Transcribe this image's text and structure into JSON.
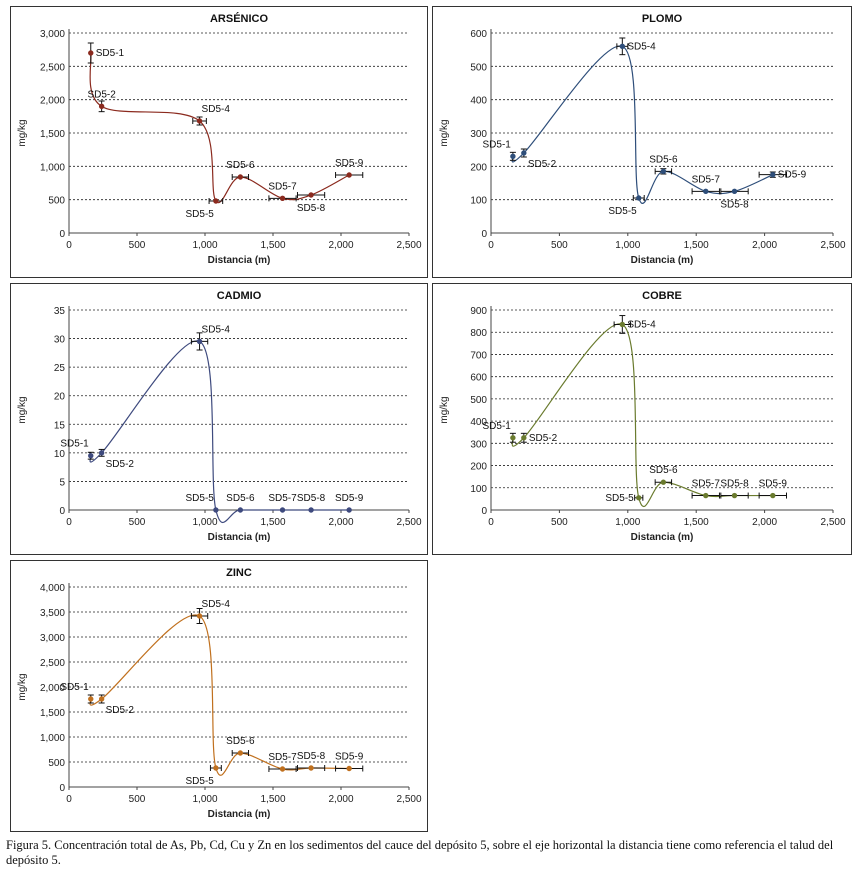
{
  "caption": "Figura 5. Concentración total de As, Pb, Cd, Cu y Zn en los sedimentos del cauce del depósito 5, sobre el eje horizontal la distancia tiene como referencia el talud del depósito 5.",
  "chart_data": [
    {
      "type": "line",
      "title": "ARSÉNICO",
      "xlabel": "Distancia (m)",
      "ylabel": "mg/kg",
      "xlim": [
        0,
        2500
      ],
      "ylim": [
        0,
        3000
      ],
      "xticks": [
        0,
        500,
        1000,
        1500,
        2000,
        2500
      ],
      "yticks": [
        0,
        500,
        1000,
        1500,
        2000,
        2500,
        3000
      ],
      "ytick_labels": [
        "0",
        "500",
        "1,000",
        "1,500",
        "2,000",
        "2,500",
        "3,000"
      ],
      "xtick_labels": [
        "0",
        "500",
        "1,000",
        "1,500",
        "2,000",
        "2,500"
      ],
      "grid": "horizontal dashed",
      "color": "#8B2A1E",
      "points": [
        {
          "label": "SD5-1",
          "x": 160,
          "y": 2700,
          "yerr": 150,
          "xerr": 0,
          "label_pos": "right"
        },
        {
          "label": "SD5-2",
          "x": 240,
          "y": 1900,
          "yerr": 80,
          "xerr": 0,
          "label_pos": "above"
        },
        {
          "label": "SD5-4",
          "x": 960,
          "y": 1680,
          "yerr": 60,
          "xerr": 50,
          "label_pos": "above-right"
        },
        {
          "label": "SD5-5",
          "x": 1080,
          "y": 480,
          "yerr": 0,
          "xerr": 50,
          "label_pos": "below-left"
        },
        {
          "label": "SD5-6",
          "x": 1260,
          "y": 840,
          "yerr": 0,
          "xerr": 60,
          "label_pos": "above"
        },
        {
          "label": "SD5-7",
          "x": 1570,
          "y": 520,
          "yerr": 0,
          "xerr": 100,
          "label_pos": "above"
        },
        {
          "label": "SD5-8",
          "x": 1780,
          "y": 570,
          "yerr": 0,
          "xerr": 100,
          "label_pos": "below"
        },
        {
          "label": "SD5-9",
          "x": 2060,
          "y": 870,
          "yerr": 0,
          "xerr": 100,
          "label_pos": "above"
        }
      ]
    },
    {
      "type": "line",
      "title": "PLOMO",
      "xlabel": "Distancia (m)",
      "ylabel": "mg/kg",
      "xlim": [
        0,
        2500
      ],
      "ylim": [
        0,
        600
      ],
      "xticks": [
        0,
        500,
        1000,
        1500,
        2000,
        2500
      ],
      "yticks": [
        0,
        100,
        200,
        300,
        400,
        500,
        600
      ],
      "ytick_labels": [
        "0",
        "100",
        "200",
        "300",
        "400",
        "500",
        "600"
      ],
      "xtick_labels": [
        "0",
        "500",
        "1,000",
        "1,500",
        "2,000",
        "2,500"
      ],
      "grid": "horizontal dashed",
      "color": "#2E4E7A",
      "points": [
        {
          "label": "SD5-1",
          "x": 160,
          "y": 230,
          "yerr": 12,
          "xerr": 0,
          "label_pos": "above-left"
        },
        {
          "label": "SD5-2",
          "x": 240,
          "y": 240,
          "yerr": 12,
          "xerr": 0,
          "label_pos": "below-right"
        },
        {
          "label": "SD5-4",
          "x": 960,
          "y": 560,
          "yerr": 25,
          "xerr": 40,
          "label_pos": "right"
        },
        {
          "label": "SD5-5",
          "x": 1080,
          "y": 105,
          "yerr": 0,
          "xerr": 40,
          "label_pos": "below-left"
        },
        {
          "label": "SD5-6",
          "x": 1260,
          "y": 185,
          "yerr": 8,
          "xerr": 60,
          "label_pos": "above"
        },
        {
          "label": "SD5-7",
          "x": 1570,
          "y": 125,
          "yerr": 0,
          "xerr": 100,
          "label_pos": "above"
        },
        {
          "label": "SD5-8",
          "x": 1780,
          "y": 125,
          "yerr": 0,
          "xerr": 100,
          "label_pos": "below"
        },
        {
          "label": "SD5-9",
          "x": 2060,
          "y": 175,
          "yerr": 8,
          "xerr": 100,
          "label_pos": "right"
        }
      ]
    },
    {
      "type": "line",
      "title": "CADMIO",
      "xlabel": "Distancia (m)",
      "ylabel": "mg/kg",
      "xlim": [
        0,
        2500
      ],
      "ylim": [
        0,
        35
      ],
      "xticks": [
        0,
        500,
        1000,
        1500,
        2000,
        2500
      ],
      "yticks": [
        0,
        5,
        10,
        15,
        20,
        25,
        30,
        35
      ],
      "ytick_labels": [
        "0",
        "5",
        "10",
        "15",
        "20",
        "25",
        "30",
        "35"
      ],
      "xtick_labels": [
        "0",
        "500",
        "1,000",
        "1,500",
        "2,000",
        "2,500"
      ],
      "grid": "horizontal dashed",
      "color": "#3E4A7E",
      "points": [
        {
          "label": "SD5-1",
          "x": 160,
          "y": 9.5,
          "yerr": 0.6,
          "xerr": 0,
          "label_pos": "above-left"
        },
        {
          "label": "SD5-2",
          "x": 240,
          "y": 10,
          "yerr": 0.6,
          "xerr": 0,
          "label_pos": "below-right"
        },
        {
          "label": "SD5-4",
          "x": 960,
          "y": 29.5,
          "yerr": 1.5,
          "xerr": 60,
          "label_pos": "above-right"
        },
        {
          "label": "SD5-5",
          "x": 1080,
          "y": 0,
          "yerr": 0,
          "xerr": 0,
          "label_pos": "above-left"
        },
        {
          "label": "SD5-6",
          "x": 1260,
          "y": 0,
          "yerr": 0,
          "xerr": 0,
          "label_pos": "above"
        },
        {
          "label": "SD5-7",
          "x": 1570,
          "y": 0,
          "yerr": 0,
          "xerr": 0,
          "label_pos": "above"
        },
        {
          "label": "SD5-8",
          "x": 1780,
          "y": 0,
          "yerr": 0,
          "xerr": 0,
          "label_pos": "above"
        },
        {
          "label": "SD5-9",
          "x": 2060,
          "y": 0,
          "yerr": 0,
          "xerr": 0,
          "label_pos": "above"
        }
      ]
    },
    {
      "type": "line",
      "title": "COBRE",
      "xlabel": "Distancia (m)",
      "ylabel": "mg/kg",
      "xlim": [
        0,
        2500
      ],
      "ylim": [
        0,
        900
      ],
      "xticks": [
        0,
        500,
        1000,
        1500,
        2000,
        2500
      ],
      "yticks": [
        0,
        100,
        200,
        300,
        400,
        500,
        600,
        700,
        800,
        900
      ],
      "ytick_labels": [
        "0",
        "100",
        "200",
        "300",
        "400",
        "500",
        "600",
        "700",
        "800",
        "900"
      ],
      "xtick_labels": [
        "0",
        "500",
        "1,000",
        "1,500",
        "2,000",
        "2,500"
      ],
      "grid": "horizontal dashed",
      "color": "#6A7B2E",
      "points": [
        {
          "label": "SD5-1",
          "x": 160,
          "y": 325,
          "yerr": 20,
          "xerr": 0,
          "label_pos": "above-left"
        },
        {
          "label": "SD5-2",
          "x": 240,
          "y": 325,
          "yerr": 20,
          "xerr": 0,
          "label_pos": "right"
        },
        {
          "label": "SD5-4",
          "x": 960,
          "y": 835,
          "yerr": 40,
          "xerr": 60,
          "label_pos": "right"
        },
        {
          "label": "SD5-5",
          "x": 1080,
          "y": 55,
          "yerr": 0,
          "xerr": 30,
          "label_pos": "left"
        },
        {
          "label": "SD5-6",
          "x": 1260,
          "y": 125,
          "yerr": 0,
          "xerr": 60,
          "label_pos": "above"
        },
        {
          "label": "SD5-7",
          "x": 1570,
          "y": 65,
          "yerr": 0,
          "xerr": 100,
          "label_pos": "above"
        },
        {
          "label": "SD5-8",
          "x": 1780,
          "y": 65,
          "yerr": 0,
          "xerr": 100,
          "label_pos": "above"
        },
        {
          "label": "SD5-9",
          "x": 2060,
          "y": 65,
          "yerr": 0,
          "xerr": 100,
          "label_pos": "above"
        }
      ]
    },
    {
      "type": "line",
      "title": "ZINC",
      "xlabel": "Distancia (m)",
      "ylabel": "mg/kg",
      "xlim": [
        0,
        2500
      ],
      "ylim": [
        0,
        4000
      ],
      "xticks": [
        0,
        500,
        1000,
        1500,
        2000,
        2500
      ],
      "yticks": [
        0,
        500,
        1000,
        1500,
        2000,
        2500,
        3000,
        3500,
        4000
      ],
      "ytick_labels": [
        "0",
        "500",
        "1,000",
        "1,500",
        "2,000",
        "2,500",
        "3,000",
        "3,500",
        "4,000"
      ],
      "xtick_labels": [
        "0",
        "500",
        "1,000",
        "1,500",
        "2,000",
        "2,500"
      ],
      "grid": "horizontal dashed",
      "color": "#C0701E",
      "points": [
        {
          "label": "SD5-1",
          "x": 160,
          "y": 1760,
          "yerr": 80,
          "xerr": 0,
          "label_pos": "above-left"
        },
        {
          "label": "SD5-2",
          "x": 240,
          "y": 1760,
          "yerr": 80,
          "xerr": 0,
          "label_pos": "below-right"
        },
        {
          "label": "SD5-4",
          "x": 960,
          "y": 3420,
          "yerr": 150,
          "xerr": 60,
          "label_pos": "above-right"
        },
        {
          "label": "SD5-5",
          "x": 1080,
          "y": 380,
          "yerr": 0,
          "xerr": 40,
          "label_pos": "below-left"
        },
        {
          "label": "SD5-6",
          "x": 1260,
          "y": 680,
          "yerr": 0,
          "xerr": 60,
          "label_pos": "above"
        },
        {
          "label": "SD5-7",
          "x": 1570,
          "y": 360,
          "yerr": 0,
          "xerr": 100,
          "label_pos": "above"
        },
        {
          "label": "SD5-8",
          "x": 1780,
          "y": 380,
          "yerr": 0,
          "xerr": 100,
          "label_pos": "above"
        },
        {
          "label": "SD5-9",
          "x": 2060,
          "y": 370,
          "yerr": 0,
          "xerr": 100,
          "label_pos": "above"
        }
      ]
    }
  ]
}
